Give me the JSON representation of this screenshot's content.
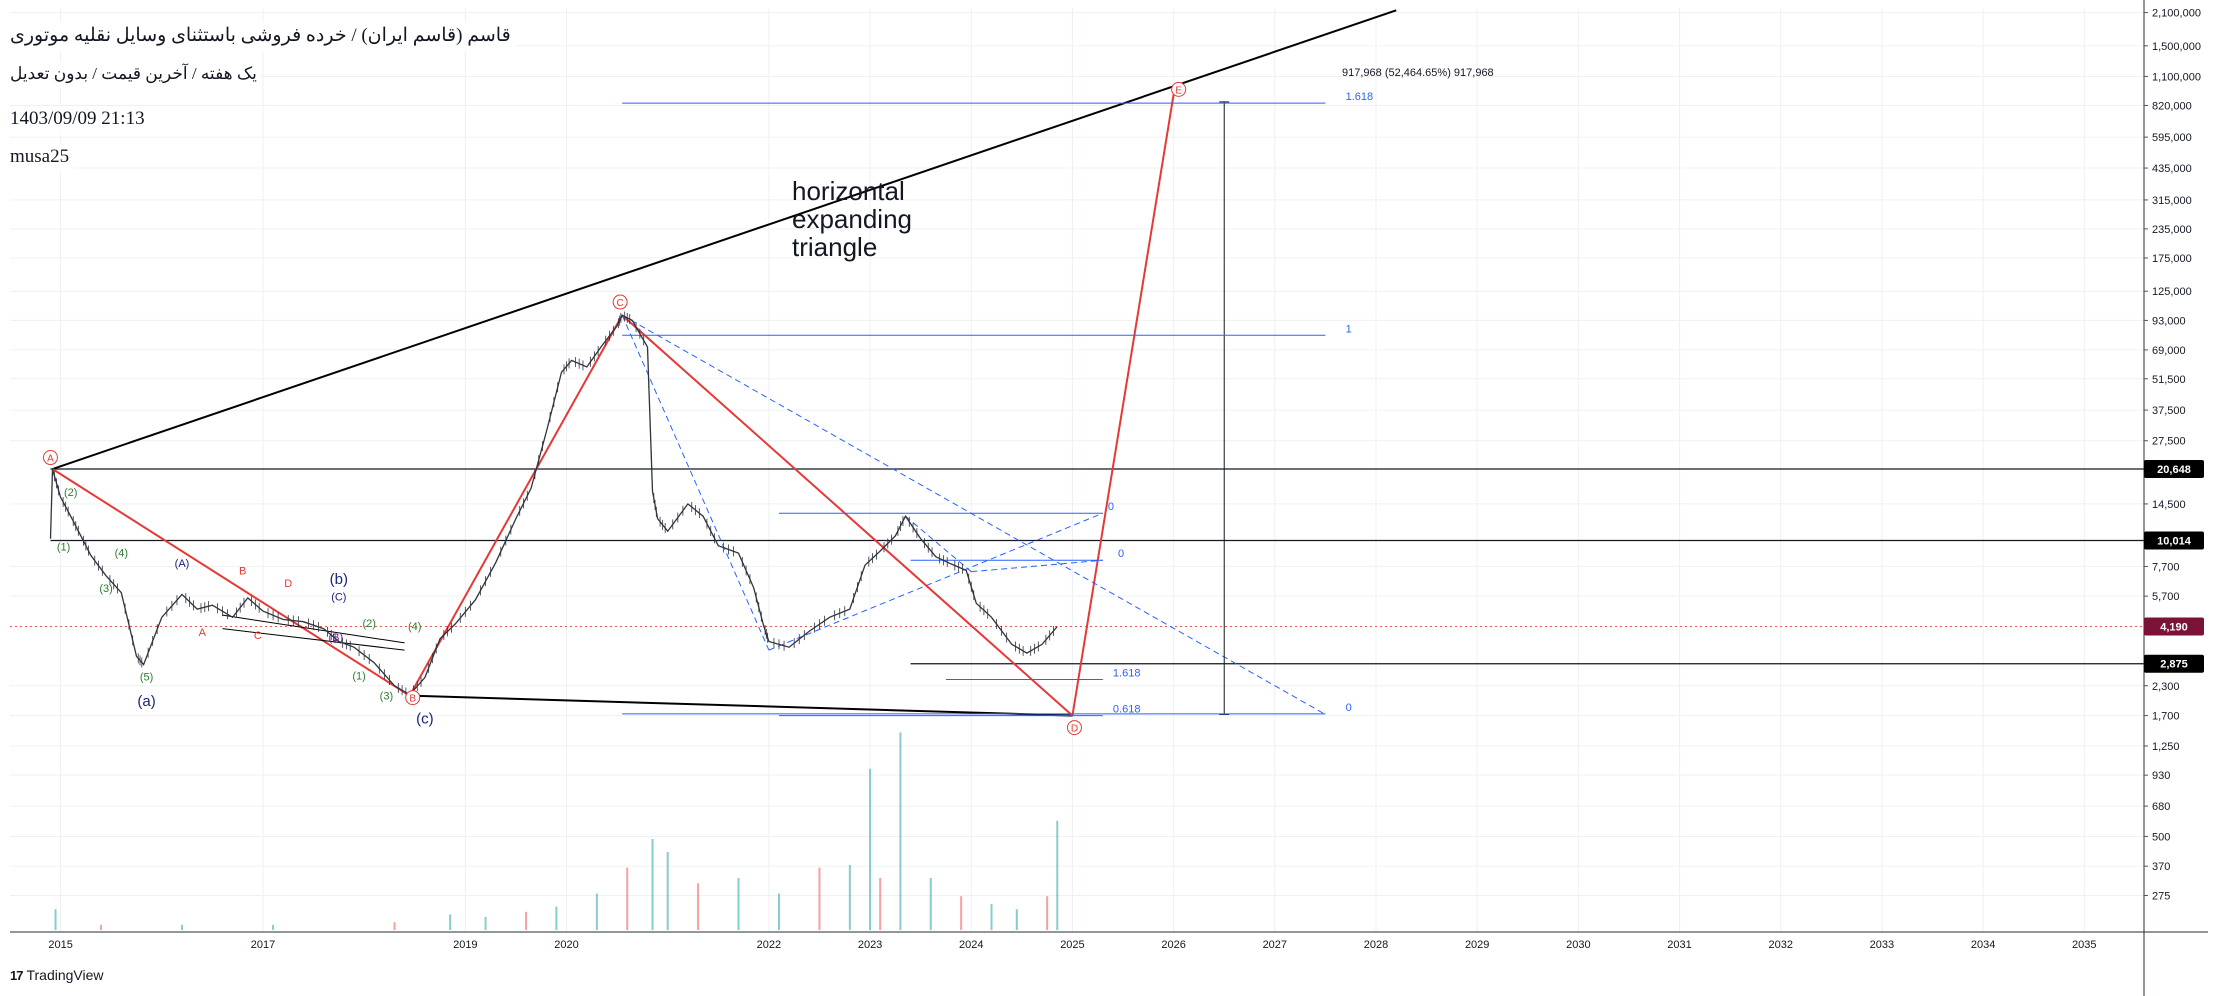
{
  "header": {
    "title": "قاسم (قاسم ایران) / خرده فروشی باستثنای وسایل نقلیه موتوری",
    "subtitle": "یک هفته / آخرین قیمت / بدون تعدیل",
    "datetime": "1403/09/09 21:13",
    "author": "musa25"
  },
  "brand": "TradingView",
  "colors": {
    "red": "#e53935",
    "blue": "#2962ff",
    "green": "#2e7d32",
    "price_badge": "#7b1237",
    "up_bar": "#26a69a",
    "down_bar": "#ef5350"
  },
  "chart_data": {
    "type": "line",
    "y_scale": "log",
    "x_range": [
      2014.5,
      2035.6
    ],
    "y_range": [
      190,
      2200000
    ],
    "y_ticks": [
      2100000,
      1500000,
      1100000,
      820000,
      595000,
      435000,
      315000,
      235000,
      175000,
      125000,
      93000,
      69000,
      51500,
      37500,
      27500,
      14500,
      7700,
      5700,
      2300,
      1700,
      1250,
      930,
      680,
      500,
      370,
      275
    ],
    "y_tick_labels": [
      "2,100,000",
      "1,500,000",
      "1,100,000",
      "820,000",
      "595,000",
      "435,000",
      "315,000",
      "235,000",
      "175,000",
      "125,000",
      "93,000",
      "69,000",
      "51,500",
      "37,500",
      "27,500",
      "14,500",
      "7,700",
      "5,700",
      "2,300",
      "1,700",
      "1,250",
      "930",
      "680",
      "500",
      "370",
      "275"
    ],
    "x_ticks": [
      2015,
      2017,
      2019,
      2020,
      2022,
      2023,
      2024,
      2025,
      2026,
      2027,
      2028,
      2029,
      2030,
      2031,
      2032,
      2033,
      2034,
      2035
    ],
    "x_tick_labels": [
      "2015",
      "2017",
      "2019",
      "2020",
      "2022",
      "2023",
      "2024",
      "2025",
      "2026",
      "2027",
      "2028",
      "2029",
      "2030",
      "2031",
      "2032",
      "2033",
      "2034",
      "2035"
    ],
    "price_badges": [
      {
        "label": "20,648",
        "value": 20648,
        "style": "black"
      },
      {
        "label": "10,014",
        "value": 10014,
        "style": "black"
      },
      {
        "label": "4,190",
        "value": 4190,
        "style": "maroon"
      },
      {
        "label": "2,875",
        "value": 2875,
        "style": "black"
      }
    ],
    "horizontal_lines": [
      {
        "value": 20648,
        "x_start": 2014.9
      },
      {
        "value": 10014,
        "x_start": 2014.9
      },
      {
        "value": 2875,
        "x_start": 2023.4
      }
    ],
    "current_price": 4190,
    "price_path": [
      [
        2014.9,
        10200
      ],
      [
        2014.92,
        20600
      ],
      [
        2015.0,
        15500
      ],
      [
        2015.1,
        12800
      ],
      [
        2015.2,
        10500
      ],
      [
        2015.3,
        8600
      ],
      [
        2015.45,
        7000
      ],
      [
        2015.6,
        5900
      ],
      [
        2015.75,
        3100
      ],
      [
        2015.82,
        2850
      ],
      [
        2016.0,
        4600
      ],
      [
        2016.2,
        5800
      ],
      [
        2016.35,
        5000
      ],
      [
        2016.5,
        5200
      ],
      [
        2016.7,
        4600
      ],
      [
        2016.85,
        5600
      ],
      [
        2017.0,
        4900
      ],
      [
        2017.2,
        4500
      ],
      [
        2017.4,
        4400
      ],
      [
        2017.6,
        4100
      ],
      [
        2017.75,
        3600
      ],
      [
        2017.9,
        3400
      ],
      [
        2018.1,
        2900
      ],
      [
        2018.3,
        2300
      ],
      [
        2018.45,
        2100
      ],
      [
        2018.6,
        2500
      ],
      [
        2018.75,
        3700
      ],
      [
        2018.9,
        4300
      ],
      [
        2019.1,
        5500
      ],
      [
        2019.3,
        8000
      ],
      [
        2019.5,
        12500
      ],
      [
        2019.65,
        17000
      ],
      [
        2019.8,
        30000
      ],
      [
        2019.95,
        55000
      ],
      [
        2020.05,
        62000
      ],
      [
        2020.2,
        58000
      ],
      [
        2020.35,
        72000
      ],
      [
        2020.5,
        88000
      ],
      [
        2020.55,
        98000
      ],
      [
        2020.65,
        93000
      ],
      [
        2020.8,
        71000
      ],
      [
        2020.85,
        16500
      ],
      [
        2020.9,
        12500
      ],
      [
        2021.0,
        11000
      ],
      [
        2021.2,
        14500
      ],
      [
        2021.35,
        12800
      ],
      [
        2021.5,
        9500
      ],
      [
        2021.7,
        8800
      ],
      [
        2021.85,
        6200
      ],
      [
        2021.95,
        4200
      ],
      [
        2022.0,
        3600
      ],
      [
        2022.2,
        3400
      ],
      [
        2022.4,
        4000
      ],
      [
        2022.6,
        4600
      ],
      [
        2022.8,
        5000
      ],
      [
        2022.95,
        7800
      ],
      [
        2023.1,
        9000
      ],
      [
        2023.25,
        10500
      ],
      [
        2023.35,
        12800
      ],
      [
        2023.5,
        10200
      ],
      [
        2023.65,
        8500
      ],
      [
        2023.8,
        7900
      ],
      [
        2023.95,
        7400
      ],
      [
        2024.05,
        5300
      ],
      [
        2024.2,
        4600
      ],
      [
        2024.4,
        3500
      ],
      [
        2024.55,
        3200
      ],
      [
        2024.7,
        3500
      ],
      [
        2024.85,
        4190
      ]
    ],
    "waves": {
      "A": [
        2014.92,
        20648
      ],
      "C": [
        2020.55,
        98000
      ],
      "D": [
        2025.0,
        1700
      ],
      "E": [
        2026.0,
        917968
      ]
    },
    "annotations": {
      "pattern": "horizontal\nexpanding\ntriangle",
      "measure": "917,968 (52,464.65%) 917,968"
    },
    "wave_labels": [
      {
        "text": "A",
        "x": 2014.9,
        "y": 23200,
        "color": "red",
        "circle": true
      },
      {
        "text": "C",
        "x": 2020.53,
        "y": 112000,
        "color": "red",
        "circle": true
      },
      {
        "text": "D",
        "x": 2025.02,
        "y": 1505,
        "color": "red",
        "circle": true
      },
      {
        "text": "E",
        "x": 2026.05,
        "y": 965000,
        "color": "red",
        "circle": true
      },
      {
        "text": "B",
        "x": 2018.48,
        "y": 2040,
        "color": "red",
        "circle": true
      },
      {
        "text": "(2)",
        "x": 2015.1,
        "y": 15700,
        "color": "green"
      },
      {
        "text": "(1)",
        "x": 2015.03,
        "y": 9050,
        "color": "green"
      },
      {
        "text": "(4)",
        "x": 2015.6,
        "y": 8500,
        "color": "green"
      },
      {
        "text": "(3)",
        "x": 2015.45,
        "y": 5950,
        "color": "green"
      },
      {
        "text": "(5)",
        "x": 2015.85,
        "y": 2430,
        "color": "green"
      },
      {
        "text": "(A)",
        "x": 2016.2,
        "y": 7650,
        "color": "navy"
      },
      {
        "text": "B",
        "x": 2016.8,
        "y": 7100,
        "color": "red"
      },
      {
        "text": "D",
        "x": 2017.25,
        "y": 6250,
        "color": "red"
      },
      {
        "text": "A",
        "x": 2016.4,
        "y": 3800,
        "color": "red"
      },
      {
        "text": "C",
        "x": 2016.95,
        "y": 3700,
        "color": "red"
      },
      {
        "text": "(b)",
        "x": 2017.75,
        "y": 6450,
        "color": "navy",
        "large": true
      },
      {
        "text": "(C)",
        "x": 2017.75,
        "y": 5450,
        "color": "navy"
      },
      {
        "text": "(B)",
        "x": 2017.72,
        "y": 3620,
        "color": "purple"
      },
      {
        "text": "(2)",
        "x": 2018.05,
        "y": 4180,
        "color": "green"
      },
      {
        "text": "(4)",
        "x": 2018.5,
        "y": 4050,
        "color": "green"
      },
      {
        "text": "(1)",
        "x": 2017.95,
        "y": 2450,
        "color": "green"
      },
      {
        "text": "(3)",
        "x": 2018.22,
        "y": 2000,
        "color": "green"
      },
      {
        "text": "(a)",
        "x": 2015.85,
        "y": 1870,
        "color": "navy",
        "large": true
      },
      {
        "text": "(c)",
        "x": 2018.6,
        "y": 1570,
        "color": "navy",
        "large": true
      }
    ],
    "fib_levels": [
      {
        "label": "1.618",
        "value": 840000,
        "x0": 2020.55,
        "x1": 2027.5,
        "label_x": 2027.7
      },
      {
        "label": "1",
        "value": 80000,
        "x0": 2020.55,
        "x1": 2027.5,
        "label_x": 2027.7
      },
      {
        "label": "0",
        "value": 1730,
        "x0": 2020.55,
        "x1": 2027.5,
        "label_x": 2027.7
      },
      {
        "label": "0",
        "value": 13200,
        "x0": 2022.1,
        "x1": 2025.3,
        "label_x": 2025.35
      },
      {
        "label": "0",
        "value": 8200,
        "x0": 2023.4,
        "x1": 2025.3,
        "label_x": 2025.45
      },
      {
        "label": "1.618",
        "value": 2450,
        "x0": 2023.75,
        "x1": 2025.3,
        "label_x": 2025.4
      },
      {
        "label": "0.618",
        "value": 1700,
        "x0": 2022.1,
        "x1": 2025.3,
        "label_x": 2025.4
      }
    ],
    "volumes": [
      {
        "x": 2014.95,
        "v": 0.08
      },
      {
        "x": 2015.4,
        "v": 0.02
      },
      {
        "x": 2016.2,
        "v": 0.02
      },
      {
        "x": 2017.1,
        "v": 0.02
      },
      {
        "x": 2018.3,
        "v": 0.03
      },
      {
        "x": 2018.85,
        "v": 0.06
      },
      {
        "x": 2019.2,
        "v": 0.05
      },
      {
        "x": 2019.6,
        "v": 0.07
      },
      {
        "x": 2019.9,
        "v": 0.09
      },
      {
        "x": 2020.3,
        "v": 0.14
      },
      {
        "x": 2020.6,
        "v": 0.24
      },
      {
        "x": 2020.85,
        "v": 0.35
      },
      {
        "x": 2021.0,
        "v": 0.3
      },
      {
        "x": 2021.3,
        "v": 0.18
      },
      {
        "x": 2021.7,
        "v": 0.2
      },
      {
        "x": 2022.1,
        "v": 0.14
      },
      {
        "x": 2022.5,
        "v": 0.24
      },
      {
        "x": 2022.8,
        "v": 0.25
      },
      {
        "x": 2023.0,
        "v": 0.62
      },
      {
        "x": 2023.1,
        "v": 0.2
      },
      {
        "x": 2023.3,
        "v": 0.76
      },
      {
        "x": 2023.6,
        "v": 0.2
      },
      {
        "x": 2023.9,
        "v": 0.13
      },
      {
        "x": 2024.2,
        "v": 0.1
      },
      {
        "x": 2024.45,
        "v": 0.08
      },
      {
        "x": 2024.75,
        "v": 0.13
      },
      {
        "x": 2024.85,
        "v": 0.42
      }
    ]
  }
}
